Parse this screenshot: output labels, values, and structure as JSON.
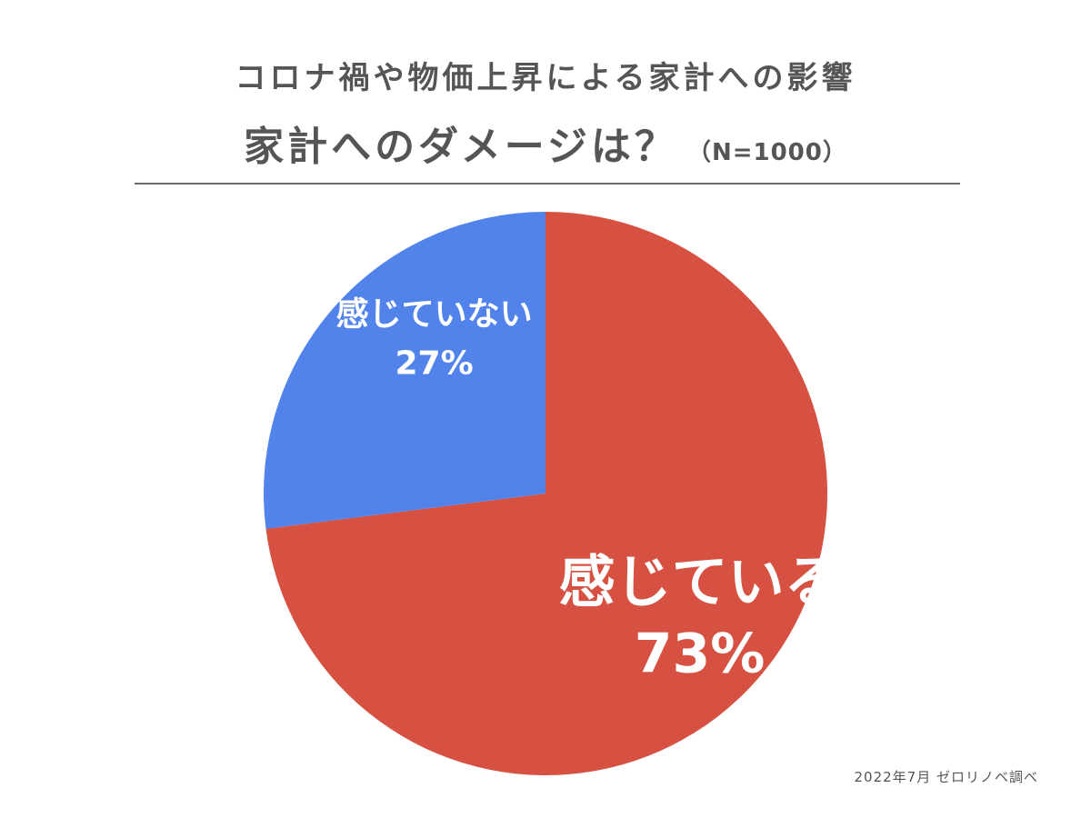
{
  "chart_data": {
    "type": "pie",
    "title": "コロナ禍や物価上昇による家計への影響",
    "subtitle": "家計へのダメージは？",
    "sample_size_label": "（N=1000）",
    "slices": [
      {
        "label": "感じている",
        "value": 73,
        "value_label": "73%",
        "color": "#D65142"
      },
      {
        "label": "感じていない",
        "value": 27,
        "value_label": "27%",
        "color": "#5283EA"
      }
    ]
  },
  "source_note": "2022年7月 ゼロリノベ調べ"
}
